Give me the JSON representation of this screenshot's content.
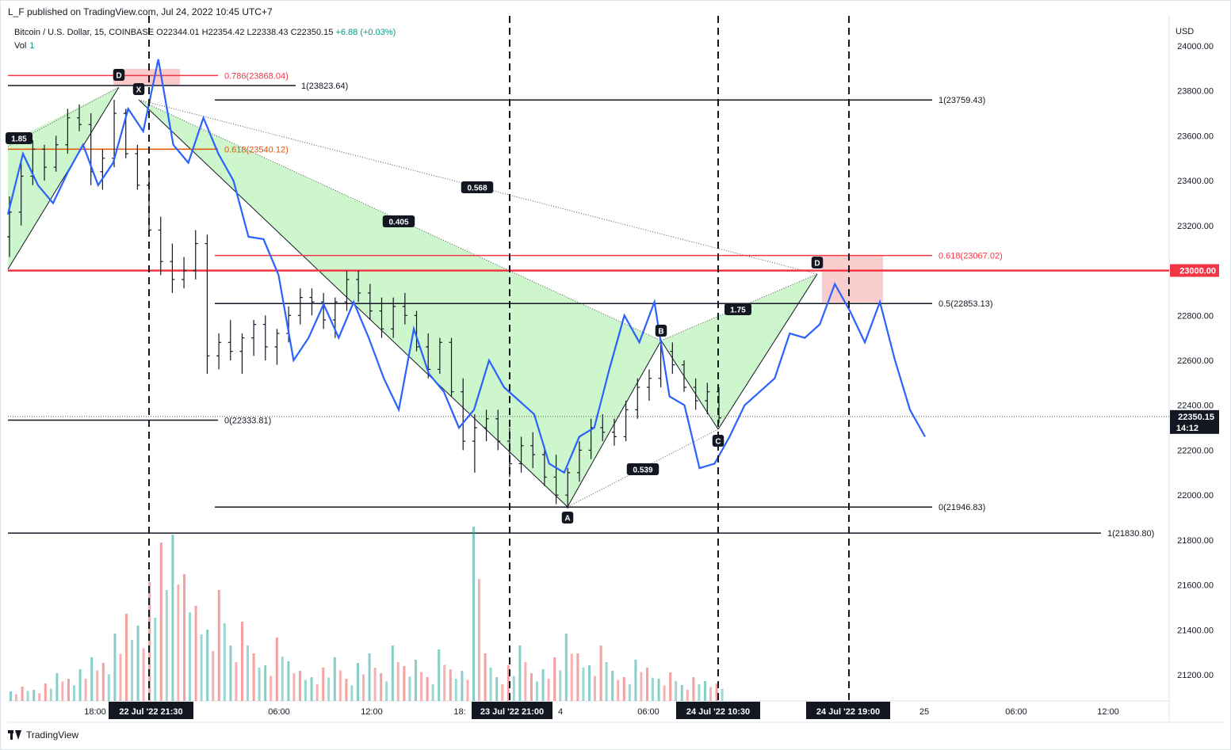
{
  "header": {
    "published": "L_F published on TradingView.com, Jul 24, 2022 10:45 UTC+7"
  },
  "symbol": {
    "name": "Bitcoin / U.S. Dollar, 15, COINBASE",
    "ohlc": "O22344.01 H22354.42 L22338.43 C22350.15",
    "change": "+6.88 (+0.03%)"
  },
  "volume_label": {
    "name": "Vol",
    "value": "1"
  },
  "currency": "USD",
  "footer": {
    "brand": "TradingView"
  },
  "colors": {
    "up": "#26a69a",
    "down": "#ef5350",
    "forecast_line": "#2962ff",
    "harmonic_fill": "#c8f5c8",
    "red_level": "#f23645"
  },
  "price_axis": {
    "ticks": [
      "24000.00",
      "23800.00",
      "23600.00",
      "23400.00",
      "23200.00",
      "23000.00",
      "22800.00",
      "22600.00",
      "22400.00",
      "22200.00",
      "22000.00",
      "21800.00",
      "21600.00",
      "21400.00",
      "21200.00"
    ],
    "current_price": "22350.15",
    "countdown": "14:12",
    "red_level_label": "23000.00"
  },
  "time_axis": {
    "ticks": [
      "18:00",
      "06:00",
      "12:00",
      "18:",
      "06:00",
      "25",
      "06:00",
      "12:00"
    ],
    "markers": [
      "22 Jul '22   21:30",
      "23 Jul '22   21:00",
      "24 Jul '22   10:30",
      "24 Jul '22   19:00"
    ],
    "partial_tick": "4"
  },
  "chart_data": {
    "type": "candlestick",
    "instrument": "Bitcoin / U.S. Dollar",
    "interval": "15",
    "exchange": "COINBASE",
    "ylim": [
      21050,
      24100
    ],
    "levels": [
      {
        "label": "0.786(23868.04)",
        "value": 23868.04,
        "color": "#f23645"
      },
      {
        "label": "1(23823.64)",
        "value": 23823.64,
        "color": "#131722"
      },
      {
        "label": "1(23759.43)",
        "value": 23759.43,
        "color": "#131722"
      },
      {
        "label": "0.618(23540.12)",
        "value": 23540.12,
        "color": "#e65100"
      },
      {
        "label": "0.618(23067.02)",
        "value": 23067.02,
        "color": "#f23645"
      },
      {
        "label": "",
        "value": 23000.0,
        "color": "#f23645"
      },
      {
        "label": "0.5(22853.13)",
        "value": 22853.13,
        "color": "#131722"
      },
      {
        "label": "0(22333.81)",
        "value": 22333.81,
        "color": "#131722"
      },
      {
        "label": "0(21946.83)",
        "value": 21946.83,
        "color": "#131722"
      },
      {
        "label": "1(21830.80)",
        "value": 21830.8,
        "color": "#131722"
      }
    ],
    "harmonic_points": [
      "X",
      "A",
      "B",
      "C",
      "D"
    ],
    "pattern_start_label": "D",
    "ratios": [
      "1.85",
      "0.405",
      "0.568",
      "0.539",
      "1.75"
    ],
    "ohlc_bars": [
      [
        23150,
        23330,
        23060,
        23260
      ],
      [
        23260,
        23480,
        23200,
        23420
      ],
      [
        23420,
        23580,
        23380,
        23540
      ],
      [
        23540,
        23560,
        23400,
        23460
      ],
      [
        23460,
        23600,
        23440,
        23560
      ],
      [
        23560,
        23720,
        23520,
        23680
      ],
      [
        23680,
        23740,
        23620,
        23650
      ],
      [
        23650,
        23700,
        23380,
        23440
      ],
      [
        23440,
        23540,
        23360,
        23500
      ],
      [
        23500,
        23760,
        23460,
        23700
      ],
      [
        23700,
        23720,
        23500,
        23520
      ],
      [
        23520,
        23560,
        23360,
        23380
      ],
      [
        23380,
        23420,
        23160,
        23180
      ],
      [
        23180,
        23240,
        22980,
        23040
      ],
      [
        23040,
        23120,
        22900,
        22960
      ],
      [
        22960,
        23060,
        22920,
        23000
      ],
      [
        23000,
        23180,
        22960,
        23120
      ],
      [
        23120,
        23160,
        22540,
        22620
      ],
      [
        22620,
        22720,
        22560,
        22680
      ],
      [
        22680,
        22780,
        22600,
        22640
      ],
      [
        22640,
        22720,
        22540,
        22700
      ],
      [
        22700,
        22780,
        22620,
        22760
      ],
      [
        22760,
        22800,
        22600,
        22660
      ],
      [
        22660,
        22740,
        22580,
        22720
      ],
      [
        22720,
        22840,
        22680,
        22800
      ],
      [
        22800,
        22920,
        22760,
        22880
      ],
      [
        22880,
        22920,
        22800,
        22860
      ],
      [
        22860,
        22900,
        22740,
        22780
      ],
      [
        22780,
        22880,
        22700,
        22860
      ],
      [
        22860,
        23000,
        22820,
        22960
      ],
      [
        22960,
        23000,
        22860,
        22900
      ],
      [
        22900,
        22940,
        22780,
        22820
      ],
      [
        22820,
        22880,
        22700,
        22740
      ],
      [
        22740,
        22880,
        22700,
        22840
      ],
      [
        22840,
        22900,
        22760,
        22800
      ],
      [
        22800,
        22820,
        22640,
        22660
      ],
      [
        22660,
        22720,
        22520,
        22560
      ],
      [
        22560,
        22700,
        22540,
        22680
      ],
      [
        22680,
        22700,
        22440,
        22460
      ],
      [
        22460,
        22520,
        22200,
        22240
      ],
      [
        22240,
        22360,
        22100,
        22300
      ],
      [
        22300,
        22380,
        22240,
        22340
      ],
      [
        22340,
        22380,
        22200,
        22240
      ],
      [
        22240,
        22300,
        22080,
        22140
      ],
      [
        22140,
        22260,
        22100,
        22220
      ],
      [
        22220,
        22280,
        22120,
        22180
      ],
      [
        22180,
        22220,
        22040,
        22080
      ],
      [
        22080,
        22180,
        21960,
        22000
      ],
      [
        22000,
        22120,
        21940,
        22100
      ],
      [
        22100,
        22240,
        22060,
        22200
      ],
      [
        22200,
        22340,
        22160,
        22300
      ],
      [
        22300,
        22360,
        22240,
        22280
      ],
      [
        22280,
        22340,
        22220,
        22260
      ],
      [
        22260,
        22420,
        22240,
        22380
      ],
      [
        22380,
        22520,
        22340,
        22480
      ],
      [
        22480,
        22560,
        22420,
        22520
      ],
      [
        22520,
        22680,
        22480,
        22640
      ],
      [
        22640,
        22680,
        22540,
        22580
      ],
      [
        22580,
        22600,
        22460,
        22480
      ],
      [
        22480,
        22520,
        22380,
        22420
      ],
      [
        22420,
        22500,
        22360,
        22460
      ],
      [
        22460,
        22480,
        22320,
        22344
      ]
    ],
    "forecast_path": [
      23250,
      23520,
      23380,
      23300,
      23440,
      23560,
      23380,
      23480,
      23720,
      23620,
      23940,
      23560,
      23480,
      23680,
      23520,
      23400,
      23150,
      23140,
      22980,
      22600,
      22700,
      22850,
      22700,
      22860,
      22700,
      22520,
      22380,
      22740,
      22540,
      22460,
      22300,
      22380,
      22600,
      22480,
      22420,
      22360,
      22140,
      22100,
      22260,
      22300,
      22560,
      22800,
      22680,
      22860,
      22440,
      22400,
      22120,
      22140,
      22260,
      22400,
      22460,
      22520,
      22720,
      22700,
      22760,
      22940,
      22820,
      22680,
      22860,
      22600,
      22380,
      22260
    ],
    "volume": [
      [
        1,
        12
      ],
      [
        0,
        18
      ],
      [
        1,
        14
      ],
      [
        0,
        22
      ],
      [
        1,
        35
      ],
      [
        0,
        28
      ],
      [
        1,
        40
      ],
      [
        1,
        55
      ],
      [
        0,
        48
      ],
      [
        1,
        85
      ],
      [
        0,
        110
      ],
      [
        1,
        95
      ],
      [
        0,
        150
      ],
      [
        0,
        200
      ],
      [
        1,
        210
      ],
      [
        0,
        160
      ],
      [
        0,
        120
      ],
      [
        1,
        90
      ],
      [
        0,
        140
      ],
      [
        1,
        70
      ],
      [
        0,
        100
      ],
      [
        0,
        60
      ],
      [
        1,
        45
      ],
      [
        0,
        80
      ],
      [
        1,
        50
      ],
      [
        0,
        38
      ],
      [
        1,
        30
      ],
      [
        0,
        42
      ],
      [
        1,
        55
      ],
      [
        0,
        28
      ],
      [
        1,
        48
      ],
      [
        1,
        60
      ],
      [
        0,
        35
      ],
      [
        1,
        70
      ],
      [
        0,
        44
      ],
      [
        1,
        52
      ],
      [
        0,
        30
      ],
      [
        1,
        65
      ],
      [
        0,
        40
      ],
      [
        1,
        38
      ],
      [
        1,
        220
      ],
      [
        0,
        60
      ],
      [
        1,
        30
      ],
      [
        0,
        45
      ],
      [
        1,
        70
      ],
      [
        0,
        35
      ],
      [
        1,
        40
      ],
      [
        0,
        55
      ],
      [
        1,
        85
      ],
      [
        0,
        60
      ],
      [
        1,
        45
      ],
      [
        0,
        70
      ],
      [
        1,
        38
      ],
      [
        0,
        30
      ],
      [
        1,
        52
      ],
      [
        0,
        42
      ],
      [
        1,
        28
      ],
      [
        0,
        36
      ],
      [
        1,
        20
      ],
      [
        0,
        30
      ],
      [
        1,
        25
      ],
      [
        0,
        22
      ]
    ]
  }
}
